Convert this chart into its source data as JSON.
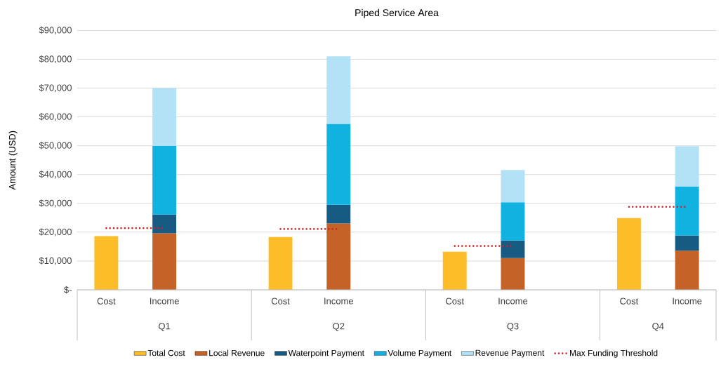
{
  "chart_data": {
    "type": "bar",
    "title": "Piped Service Area",
    "ylabel": "Amount (USD)",
    "categories": [
      "Cost",
      "Income",
      null,
      "Cost",
      "Income",
      null,
      "Cost",
      "Income",
      null,
      "Cost",
      "Income"
    ],
    "series": [
      {
        "name": "Total Cost",
        "color": "#fdbd28",
        "values": [
          18600,
          null,
          null,
          18300,
          null,
          null,
          13200,
          null,
          null,
          24900,
          null
        ]
      },
      {
        "name": "Local Revenue",
        "color": "#c46227",
        "values": [
          null,
          19600,
          null,
          null,
          23000,
          null,
          null,
          11000,
          null,
          null,
          13600
        ]
      },
      {
        "name": "Waterpoint Payment",
        "color": "#175a82",
        "values": [
          null,
          6500,
          null,
          null,
          6500,
          null,
          null,
          6100,
          null,
          null,
          5300
        ]
      },
      {
        "name": "Volume Payment",
        "color": "#11b2e0",
        "values": [
          null,
          23900,
          null,
          null,
          28100,
          null,
          null,
          13300,
          null,
          null,
          16900
        ]
      },
      {
        "name": "Revenue Payment",
        "color": "#b3e2f6",
        "values": [
          null,
          20000,
          null,
          null,
          23400,
          null,
          null,
          11200,
          null,
          null,
          14000
        ]
      },
      {
        "name": "Max Funding Threshold",
        "color": "#d0202a",
        "type": "line",
        "line_style": "dotted",
        "values": [
          21400,
          21400,
          null,
          21100,
          21100,
          null,
          15200,
          15200,
          null,
          28800,
          28800
        ]
      }
    ],
    "stacked": true,
    "ylim": [
      0,
      90000
    ],
    "yticks": [
      {
        "value": 0,
        "label": "$-"
      },
      {
        "value": 10000,
        "label": "$10,000"
      },
      {
        "value": 20000,
        "label": "$20,000"
      },
      {
        "value": 30000,
        "label": "$30,000"
      },
      {
        "value": 40000,
        "label": "$40,000"
      },
      {
        "value": 50000,
        "label": "$50,000"
      },
      {
        "value": 60000,
        "label": "$60,000"
      },
      {
        "value": 70000,
        "label": "$70,000"
      },
      {
        "value": 80000,
        "label": "$80,000"
      },
      {
        "value": 90000,
        "label": "$90,000"
      }
    ],
    "grid": "y",
    "legend": "bottom",
    "annotations": [
      "Q1",
      "Q2",
      "Q3",
      "Q4"
    ]
  }
}
